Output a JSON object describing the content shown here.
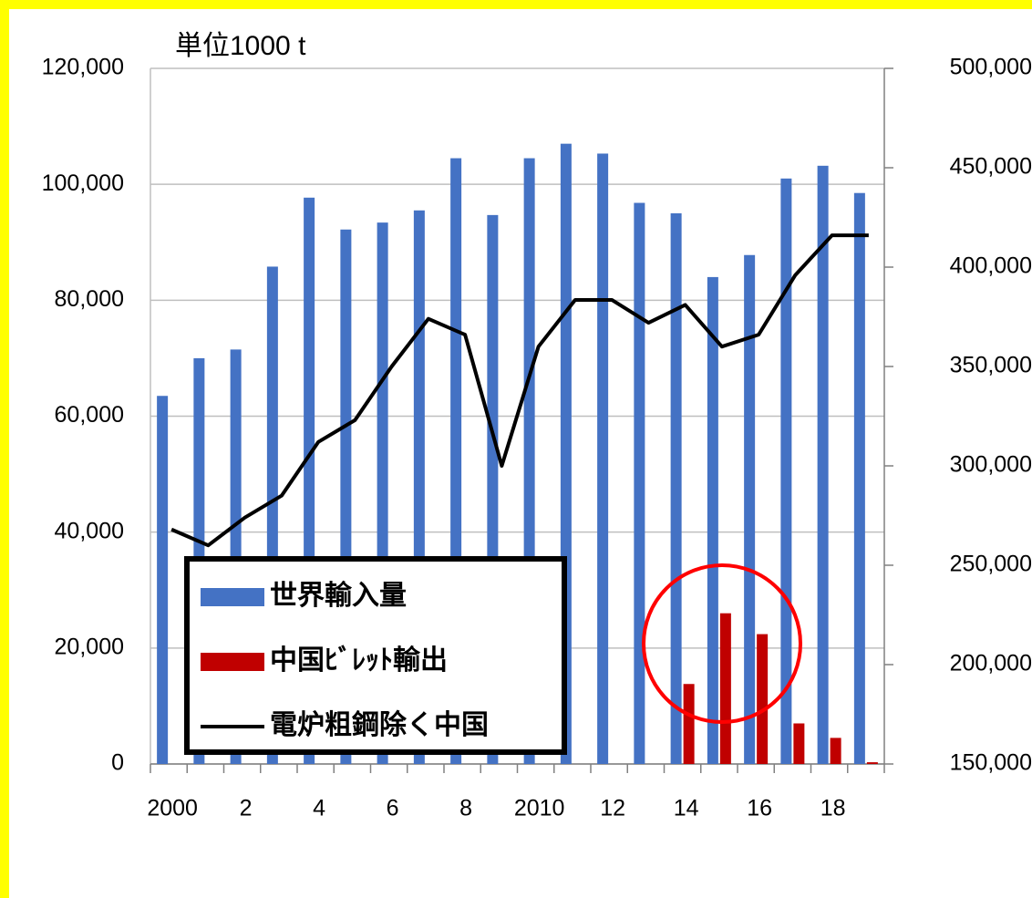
{
  "chart_data": {
    "type": "bar-line",
    "title": "単位1000 t",
    "categories": [
      "2000",
      null,
      "2",
      null,
      "4",
      null,
      "6",
      null,
      "8",
      null,
      "2010",
      null,
      "12",
      null,
      "14",
      null,
      "16",
      null,
      "18",
      null
    ],
    "series": [
      {
        "name": "世界輸入量",
        "type": "bar",
        "color": "#4472c4",
        "axis": "y",
        "values": [
          63500,
          70000,
          71500,
          85800,
          97700,
          92200,
          93400,
          95500,
          104500,
          94700,
          104500,
          107000,
          105300,
          96800,
          95000,
          84000,
          87800,
          101000,
          103200,
          98500
        ]
      },
      {
        "name": "中国ﾋﾞﾚｯﾄ輸出",
        "type": "bar",
        "color": "#c00000",
        "axis": "y",
        "values": [
          null,
          null,
          null,
          null,
          null,
          null,
          null,
          null,
          null,
          null,
          null,
          null,
          null,
          null,
          13800,
          26000,
          22400,
          7000,
          4500,
          300
        ]
      },
      {
        "name": "電炉粗鋼除く中国",
        "type": "line",
        "color": "#000000",
        "axis": "y2",
        "values": [
          268000,
          260000,
          274000,
          285000,
          312000,
          323000,
          350000,
          374000,
          366000,
          300000,
          360000,
          383500,
          383500,
          372000,
          381000,
          360000,
          366000,
          396000,
          416000,
          416000
        ]
      }
    ],
    "ylim": [
      0,
      120000
    ],
    "yticks": [
      0,
      {
        "value": 20000,
        "label": "20,000"
      },
      {
        "value": 40000,
        "label": "40,000"
      },
      {
        "value": 60000,
        "label": "60,000"
      },
      {
        "value": 80000,
        "label": "80,000"
      },
      {
        "value": 100000,
        "label": "100,000"
      },
      {
        "value": 120000,
        "label": "120,000"
      }
    ],
    "y2lim": [
      150000,
      500000
    ],
    "y2ticks": [
      {
        "value": 150000,
        "label": "150,000"
      },
      {
        "value": 200000,
        "label": "200,000"
      },
      {
        "value": 250000,
        "label": "250,000"
      },
      {
        "value": 300000,
        "label": "300,000"
      },
      {
        "value": 350000,
        "label": "350,000"
      },
      {
        "value": 400000,
        "label": "400,000"
      },
      {
        "value": 450000,
        "label": "450,000"
      },
      {
        "value": 500000,
        "label": "500,000"
      }
    ],
    "grid": true,
    "legend": "bottom-left"
  }
}
